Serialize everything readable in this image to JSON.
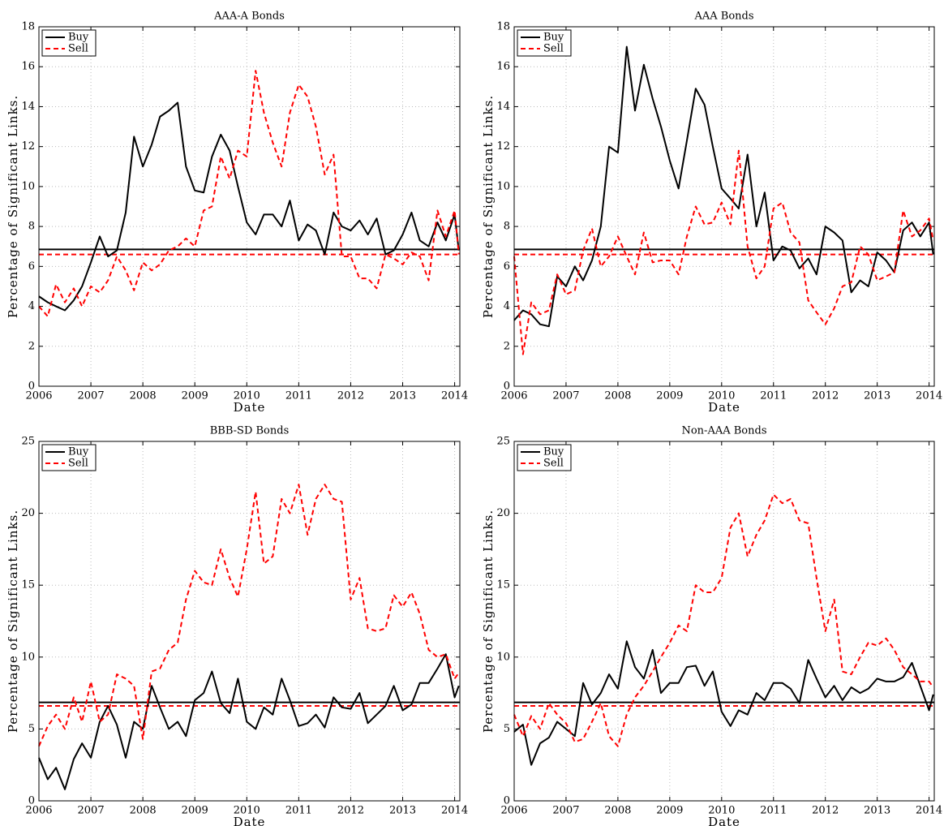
{
  "chart_data": [
    {
      "type": "line",
      "title": "AAA-A Bonds",
      "xlabel": "Date",
      "ylabel": "Percentage of Significant Links.",
      "xlim": [
        2006,
        2014.1
      ],
      "xticks": [
        2006,
        2007,
        2008,
        2009,
        2010,
        2011,
        2012,
        2013,
        2014
      ],
      "ylim": [
        0,
        18
      ],
      "yticks": [
        0,
        2,
        4,
        6,
        8,
        10,
        12,
        14,
        16,
        18
      ],
      "grid": true,
      "legend": "upper left",
      "x": [
        2006,
        2006.17,
        2006.33,
        2006.5,
        2006.67,
        2006.83,
        2007,
        2007.17,
        2007.33,
        2007.5,
        2007.67,
        2007.83,
        2008,
        2008.17,
        2008.33,
        2008.5,
        2008.67,
        2008.83,
        2009,
        2009.17,
        2009.33,
        2009.5,
        2009.67,
        2009.83,
        2010,
        2010.17,
        2010.33,
        2010.5,
        2010.67,
        2010.83,
        2011,
        2011.17,
        2011.33,
        2011.5,
        2011.67,
        2011.83,
        2012,
        2012.17,
        2012.33,
        2012.5,
        2012.67,
        2012.83,
        2013,
        2013.17,
        2013.33,
        2013.5,
        2013.67,
        2013.83,
        2014,
        2014.08
      ],
      "series": [
        {
          "name": "Buy",
          "color": "#000000",
          "dash": false,
          "values": [
            4.5,
            4.2,
            4.0,
            3.8,
            4.3,
            5.0,
            6.2,
            7.5,
            6.5,
            6.8,
            8.7,
            12.5,
            11.0,
            12.1,
            13.5,
            13.8,
            14.2,
            11.0,
            9.8,
            9.7,
            11.5,
            12.6,
            11.8,
            10.0,
            8.2,
            7.6,
            8.6,
            8.6,
            8.0,
            9.3,
            7.3,
            8.1,
            7.8,
            6.6,
            8.7,
            8.0,
            7.8,
            8.3,
            7.6,
            8.4,
            6.6,
            6.8,
            7.6,
            8.7,
            7.3,
            7.0,
            8.2,
            7.3,
            8.6,
            6.8
          ]
        },
        {
          "name": "Sell",
          "color": "#ff0000",
          "dash": true,
          "values": [
            4.0,
            3.5,
            5.1,
            4.2,
            4.9,
            4.0,
            5.0,
            4.7,
            5.3,
            6.5,
            5.8,
            4.8,
            6.2,
            5.8,
            6.1,
            6.8,
            7.0,
            7.4,
            7.0,
            8.8,
            9.0,
            11.5,
            10.4,
            11.8,
            11.5,
            15.8,
            13.7,
            12.2,
            11.0,
            13.7,
            15.1,
            14.5,
            13.0,
            10.6,
            11.6,
            6.5,
            6.5,
            5.4,
            5.4,
            4.9,
            6.6,
            6.4,
            6.1,
            6.7,
            6.5,
            5.3,
            8.8,
            7.5,
            8.8,
            6.6
          ]
        }
      ],
      "hlines": [
        {
          "value": 6.85,
          "color": "#000000",
          "dash": false
        },
        {
          "value": 6.6,
          "color": "#ff0000",
          "dash": true
        }
      ]
    },
    {
      "type": "line",
      "title": "AAA Bonds",
      "xlabel": "Date",
      "ylabel": "Percentage of Significant Links.",
      "xlim": [
        2006,
        2014.1
      ],
      "xticks": [
        2006,
        2007,
        2008,
        2009,
        2010,
        2011,
        2012,
        2013,
        2014
      ],
      "ylim": [
        0,
        18
      ],
      "yticks": [
        0,
        2,
        4,
        6,
        8,
        10,
        12,
        14,
        16,
        18
      ],
      "grid": true,
      "legend": "upper left",
      "x": [
        2006,
        2006.17,
        2006.33,
        2006.5,
        2006.67,
        2006.83,
        2007,
        2007.17,
        2007.33,
        2007.5,
        2007.67,
        2007.83,
        2008,
        2008.17,
        2008.33,
        2008.5,
        2008.67,
        2008.83,
        2009,
        2009.17,
        2009.33,
        2009.5,
        2009.67,
        2009.83,
        2010,
        2010.17,
        2010.33,
        2010.5,
        2010.67,
        2010.83,
        2011,
        2011.17,
        2011.33,
        2011.5,
        2011.67,
        2011.83,
        2012,
        2012.17,
        2012.33,
        2012.5,
        2012.67,
        2012.83,
        2013,
        2013.17,
        2013.33,
        2013.5,
        2013.67,
        2013.83,
        2014,
        2014.08
      ],
      "series": [
        {
          "name": "Buy",
          "color": "#000000",
          "dash": false,
          "values": [
            3.3,
            3.8,
            3.6,
            3.1,
            3.0,
            5.5,
            5.0,
            6.0,
            5.3,
            6.3,
            8.0,
            12.0,
            11.7,
            17.0,
            13.8,
            16.1,
            14.4,
            13.0,
            11.3,
            9.9,
            12.3,
            14.9,
            14.1,
            12.0,
            9.9,
            9.4,
            8.9,
            11.6,
            8.0,
            9.7,
            6.3,
            7.0,
            6.8,
            5.9,
            6.4,
            5.6,
            8.0,
            7.7,
            7.3,
            4.7,
            5.3,
            5.0,
            6.7,
            6.3,
            5.7,
            7.8,
            8.2,
            7.5,
            8.2,
            6.6
          ]
        },
        {
          "name": "Sell",
          "color": "#ff0000",
          "dash": true,
          "values": [
            6.5,
            1.6,
            4.2,
            3.6,
            3.8,
            5.6,
            4.6,
            4.8,
            6.8,
            7.9,
            6.0,
            6.5,
            7.5,
            6.5,
            5.6,
            7.7,
            6.2,
            6.3,
            6.3,
            5.6,
            7.5,
            9.0,
            8.1,
            8.2,
            9.2,
            8.1,
            11.8,
            7.0,
            5.4,
            6.0,
            8.9,
            9.2,
            7.7,
            7.2,
            4.3,
            3.7,
            3.1,
            3.9,
            5.0,
            5.2,
            7.0,
            6.6,
            5.3,
            5.5,
            5.7,
            8.8,
            7.5,
            7.8,
            8.4,
            7.3
          ]
        }
      ],
      "hlines": [
        {
          "value": 6.85,
          "color": "#000000",
          "dash": false
        },
        {
          "value": 6.6,
          "color": "#ff0000",
          "dash": true
        }
      ]
    },
    {
      "type": "line",
      "title": "BBB-SD Bonds",
      "xlabel": "Date",
      "ylabel": "Percentage of Significant Links.",
      "xlim": [
        2006,
        2014.1
      ],
      "xticks": [
        2006,
        2007,
        2008,
        2009,
        2010,
        2011,
        2012,
        2013,
        2014
      ],
      "ylim": [
        0,
        25
      ],
      "yticks": [
        0,
        5,
        10,
        15,
        20,
        25
      ],
      "grid": true,
      "legend": "upper left",
      "x": [
        2006,
        2006.17,
        2006.33,
        2006.5,
        2006.67,
        2006.83,
        2007,
        2007.17,
        2007.33,
        2007.5,
        2007.67,
        2007.83,
        2008,
        2008.17,
        2008.33,
        2008.5,
        2008.67,
        2008.83,
        2009,
        2009.17,
        2009.33,
        2009.5,
        2009.67,
        2009.83,
        2010,
        2010.17,
        2010.33,
        2010.5,
        2010.67,
        2010.83,
        2011,
        2011.17,
        2011.33,
        2011.5,
        2011.67,
        2011.83,
        2012,
        2012.17,
        2012.33,
        2012.5,
        2012.67,
        2012.83,
        2013,
        2013.17,
        2013.33,
        2013.5,
        2013.67,
        2013.83,
        2014,
        2014.08
      ],
      "series": [
        {
          "name": "Buy",
          "color": "#000000",
          "dash": false,
          "values": [
            3.0,
            1.5,
            2.3,
            0.8,
            2.9,
            4.0,
            3.0,
            5.5,
            6.6,
            5.3,
            3.0,
            5.5,
            5.0,
            8.0,
            6.5,
            5.0,
            5.5,
            4.5,
            7.0,
            7.5,
            9.0,
            6.8,
            6.1,
            8.5,
            5.5,
            5.0,
            6.5,
            6.0,
            8.5,
            7.0,
            5.2,
            5.4,
            6.0,
            5.1,
            7.2,
            6.5,
            6.4,
            7.5,
            5.4,
            6.0,
            6.6,
            8.0,
            6.3,
            6.7,
            8.2,
            8.2,
            9.2,
            10.2,
            7.2,
            8.0
          ]
        },
        {
          "name": "Sell",
          "color": "#ff0000",
          "dash": true,
          "values": [
            3.8,
            5.2,
            6.0,
            5.0,
            7.2,
            5.5,
            8.3,
            5.5,
            6.0,
            8.8,
            8.5,
            8.0,
            4.3,
            9.0,
            9.2,
            10.5,
            11.0,
            14.0,
            16.0,
            15.2,
            15.0,
            17.5,
            15.5,
            14.2,
            17.5,
            21.5,
            16.5,
            17.0,
            21.0,
            20.0,
            22.0,
            18.5,
            21.0,
            22.0,
            21.0,
            20.8,
            14.0,
            15.5,
            12.0,
            11.8,
            12.0,
            14.3,
            13.5,
            14.5,
            13.0,
            10.5,
            10.0,
            10.2,
            8.5,
            8.9
          ]
        }
      ],
      "hlines": [
        {
          "value": 6.85,
          "color": "#000000",
          "dash": false
        },
        {
          "value": 6.6,
          "color": "#ff0000",
          "dash": true
        }
      ]
    },
    {
      "type": "line",
      "title": "Non-AAA Bonds",
      "xlabel": "Date",
      "ylabel": "Percentage of Significant Links.",
      "xlim": [
        2006,
        2014.1
      ],
      "xticks": [
        2006,
        2007,
        2008,
        2009,
        2010,
        2011,
        2012,
        2013,
        2014
      ],
      "ylim": [
        0,
        25
      ],
      "yticks": [
        0,
        5,
        10,
        15,
        20,
        25
      ],
      "grid": true,
      "legend": "upper left",
      "x": [
        2006,
        2006.17,
        2006.33,
        2006.5,
        2006.67,
        2006.83,
        2007,
        2007.17,
        2007.33,
        2007.5,
        2007.67,
        2007.83,
        2008,
        2008.17,
        2008.33,
        2008.5,
        2008.67,
        2008.83,
        2009,
        2009.17,
        2009.33,
        2009.5,
        2009.67,
        2009.83,
        2010,
        2010.17,
        2010.33,
        2010.5,
        2010.67,
        2010.83,
        2011,
        2011.17,
        2011.33,
        2011.5,
        2011.67,
        2011.83,
        2012,
        2012.17,
        2012.33,
        2012.5,
        2012.67,
        2012.83,
        2013,
        2013.17,
        2013.33,
        2013.5,
        2013.67,
        2013.83,
        2014,
        2014.08
      ],
      "series": [
        {
          "name": "Buy",
          "color": "#000000",
          "dash": false,
          "values": [
            4.8,
            5.3,
            2.5,
            4.0,
            4.4,
            5.5,
            5.0,
            4.5,
            8.2,
            6.7,
            7.5,
            8.8,
            7.8,
            11.1,
            9.3,
            8.5,
            10.5,
            7.5,
            8.2,
            8.2,
            9.3,
            9.4,
            8.0,
            9.0,
            6.2,
            5.2,
            6.3,
            6.0,
            7.5,
            7.0,
            8.2,
            8.2,
            7.8,
            6.8,
            9.8,
            8.5,
            7.2,
            8.0,
            7.0,
            7.9,
            7.5,
            7.8,
            8.5,
            8.3,
            8.3,
            8.6,
            9.6,
            8.0,
            6.3,
            7.4
          ]
        },
        {
          "name": "Sell",
          "color": "#ff0000",
          "dash": true,
          "values": [
            6.0,
            4.5,
            5.9,
            5.0,
            6.8,
            6.0,
            5.4,
            4.1,
            4.3,
            5.5,
            6.8,
            4.5,
            3.8,
            6.0,
            7.2,
            8.0,
            9.0,
            10.0,
            11.0,
            12.2,
            11.8,
            15.0,
            14.5,
            14.5,
            15.5,
            19.0,
            20.0,
            17.0,
            18.5,
            19.5,
            21.3,
            20.7,
            21.0,
            19.5,
            19.3,
            15.5,
            11.8,
            14.0,
            9.0,
            8.8,
            10.0,
            11.0,
            10.8,
            11.3,
            10.5,
            9.3,
            8.8,
            8.3,
            8.3,
            7.9
          ]
        }
      ],
      "hlines": [
        {
          "value": 6.85,
          "color": "#000000",
          "dash": false
        },
        {
          "value": 6.6,
          "color": "#ff0000",
          "dash": true
        }
      ]
    }
  ]
}
